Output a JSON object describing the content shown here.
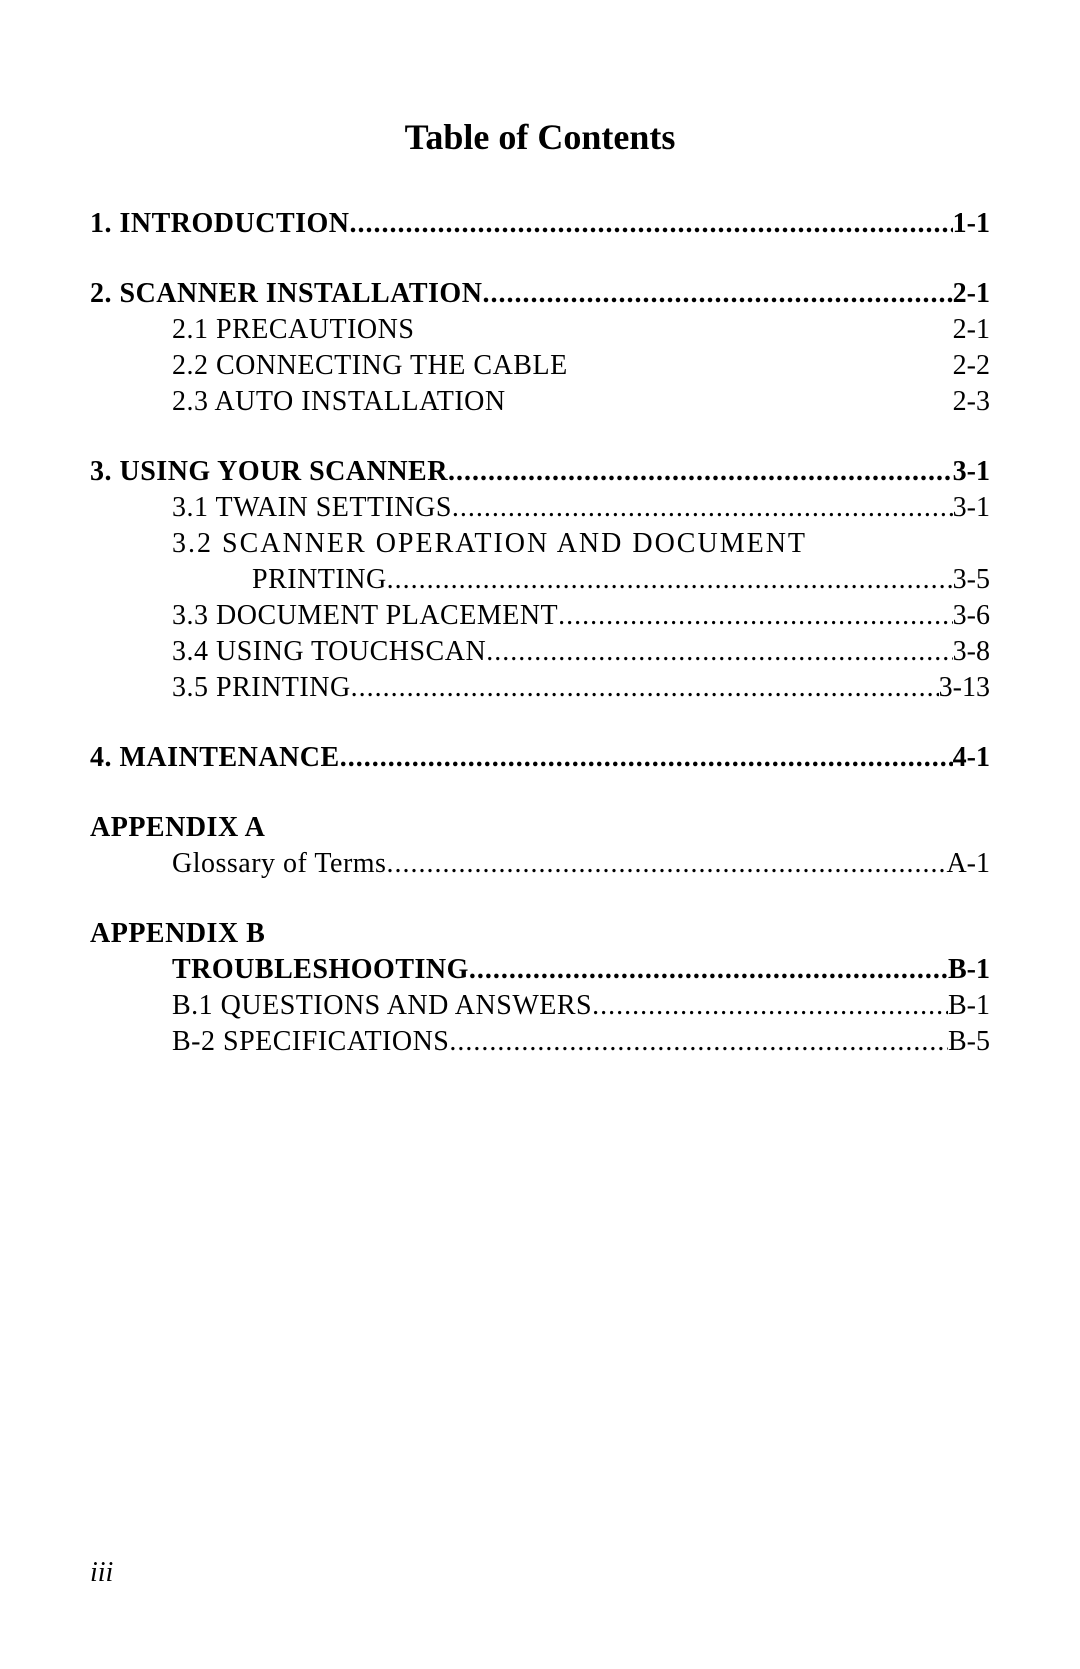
{
  "title": "Table of Contents",
  "page_footer": "iii",
  "colors": {
    "text": "#000000",
    "background": "#ffffff"
  },
  "typography": {
    "font_family": "Times New Roman",
    "title_fontsize": 36,
    "body_fontsize": 28
  },
  "entries": [
    {
      "class": "main",
      "label": "1. INTRODUCTION",
      "page": "1-1",
      "dots": true
    },
    {
      "class": "main",
      "label": "2. SCANNER INSTALLATION",
      "page": "2-1",
      "dots": true
    },
    {
      "class": "sub",
      "label": "2.1 PRECAUTIONS",
      "page": "2-1",
      "dots": false
    },
    {
      "class": "sub",
      "label": "2.2 CONNECTING THE CABLE",
      "page": "2-2",
      "dots": false
    },
    {
      "class": "sub",
      "label": "2.3 AUTO INSTALLATION",
      "page": "2-3",
      "dots": false
    },
    {
      "class": "main",
      "label": "3. USING YOUR SCANNER",
      "page": "3-1",
      "dots": true
    },
    {
      "class": "sub",
      "label": "3.1 TWAIN SETTINGS",
      "page": "3-1",
      "dots": true
    },
    {
      "class": "sub",
      "label_wide": true,
      "label": "3.2 SCANNER OPERATION AND DOCUMENT",
      "page": "",
      "dots": false,
      "no_page": true
    },
    {
      "class": "wrap-continue",
      "label": "PRINTING ",
      "page": "3-5",
      "dots": true
    },
    {
      "class": "sub",
      "label": "3.3 DOCUMENT PLACEMENT",
      "page": "3-6",
      "dots": true
    },
    {
      "class": "sub",
      "label": "3.4 USING TOUCHSCAN",
      "page": "3-8",
      "dots": true
    },
    {
      "class": "sub",
      "label": "3.5 PRINTING",
      "page": "3-13",
      "dots": true
    },
    {
      "class": "main",
      "label": "4. MAINTENANCE",
      "page": "4-1",
      "dots": true
    },
    {
      "class": "main",
      "label": "APPENDIX A",
      "page": "",
      "dots": false,
      "no_page": true
    },
    {
      "class": "sub",
      "label": "Glossary of Terms",
      "page": "A-1",
      "dots": true
    },
    {
      "class": "main",
      "label": "APPENDIX B",
      "page": "",
      "dots": false,
      "no_page": true
    },
    {
      "class": "sub-bold",
      "label": "TROUBLESHOOTING",
      "page": "B-1",
      "dots": true
    },
    {
      "class": "sub",
      "label": "B.1 QUESTIONS AND ANSWERS",
      "page": "B-1",
      "dots": true
    },
    {
      "class": "sub",
      "label": "B-2 SPECIFICATIONS",
      "page": "B-5",
      "dots": true
    }
  ]
}
